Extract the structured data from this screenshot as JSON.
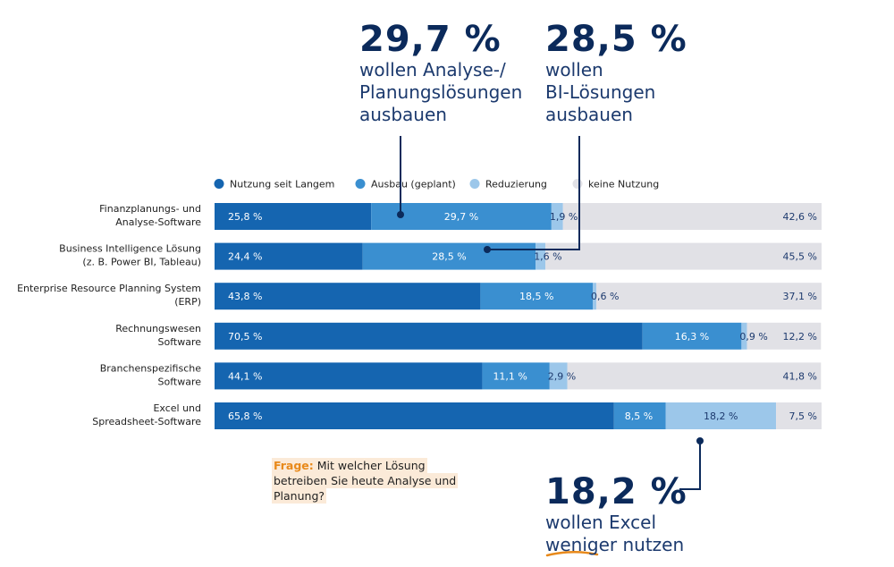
{
  "chart_data": {
    "type": "bar",
    "stacked": true,
    "orientation": "horizontal",
    "legend_position": "top",
    "categories": [
      [
        "Finanzplanungs- und",
        "Analyse-Software"
      ],
      [
        "Business Intelligence Lösung",
        "(z. B. Power BI, Tableau)"
      ],
      [
        "Enterprise Resource Planning System",
        "(ERP)"
      ],
      [
        "Rechnungswesen",
        "Software"
      ],
      [
        "Branchenspezifische",
        "Software"
      ],
      [
        "Excel und",
        "Spreadsheet-Software"
      ]
    ],
    "series": [
      {
        "name": "Nutzung seit Langem",
        "color": "#1565b0",
        "values": [
          25.8,
          24.4,
          43.8,
          70.5,
          44.1,
          65.8
        ],
        "labels": [
          "25,8 %",
          "24,4 %",
          "43,8 %",
          "70,5 %",
          "44,1 %",
          "65,8 %"
        ]
      },
      {
        "name": "Ausbau (geplant)",
        "color": "#3a8fd0",
        "values": [
          29.7,
          28.5,
          18.5,
          16.3,
          11.1,
          8.5
        ],
        "labels": [
          "29,7 %",
          "28,5 %",
          "18,5 %",
          "16,3 %",
          "11,1 %",
          "8,5 %"
        ]
      },
      {
        "name": "Reduzierung",
        "color": "#9cc7ea",
        "values": [
          1.9,
          1.6,
          0.6,
          0.9,
          2.9,
          18.2
        ],
        "labels": [
          "1,9 %",
          "1,6 %",
          "0,6 %",
          "0,9 %",
          "2,9 %",
          "18,2 %"
        ]
      },
      {
        "name": "keine Nutzung",
        "color": "#e1e1e6",
        "values": [
          42.6,
          45.5,
          37.1,
          12.2,
          41.8,
          7.5
        ],
        "labels": [
          "42,6 %",
          "45,5 %",
          "37,1 %",
          "12,2 %",
          "41,8 %",
          "7,5 %"
        ]
      }
    ]
  },
  "callouts": [
    {
      "value": "29,7 %",
      "text": "wollen Analyse-/\nPlanungslösungen\nausbauen"
    },
    {
      "value": "28,5 %",
      "text": "wollen\nBI-Lösungen\nausbauen"
    },
    {
      "value": "18,2 %",
      "text": "wollen Excel\nweniger nutzen"
    }
  ],
  "question": {
    "label": "Frage:",
    "text": "Mit welcher Lösung betreiben Sie heute Analyse und Planung?"
  },
  "colors": {
    "callout_text": "#0b2a5b",
    "connector": "#0b2a5b",
    "question_label": "#e8891a",
    "question_bg": "#fbead8",
    "underline_accent": "#e8891a"
  }
}
